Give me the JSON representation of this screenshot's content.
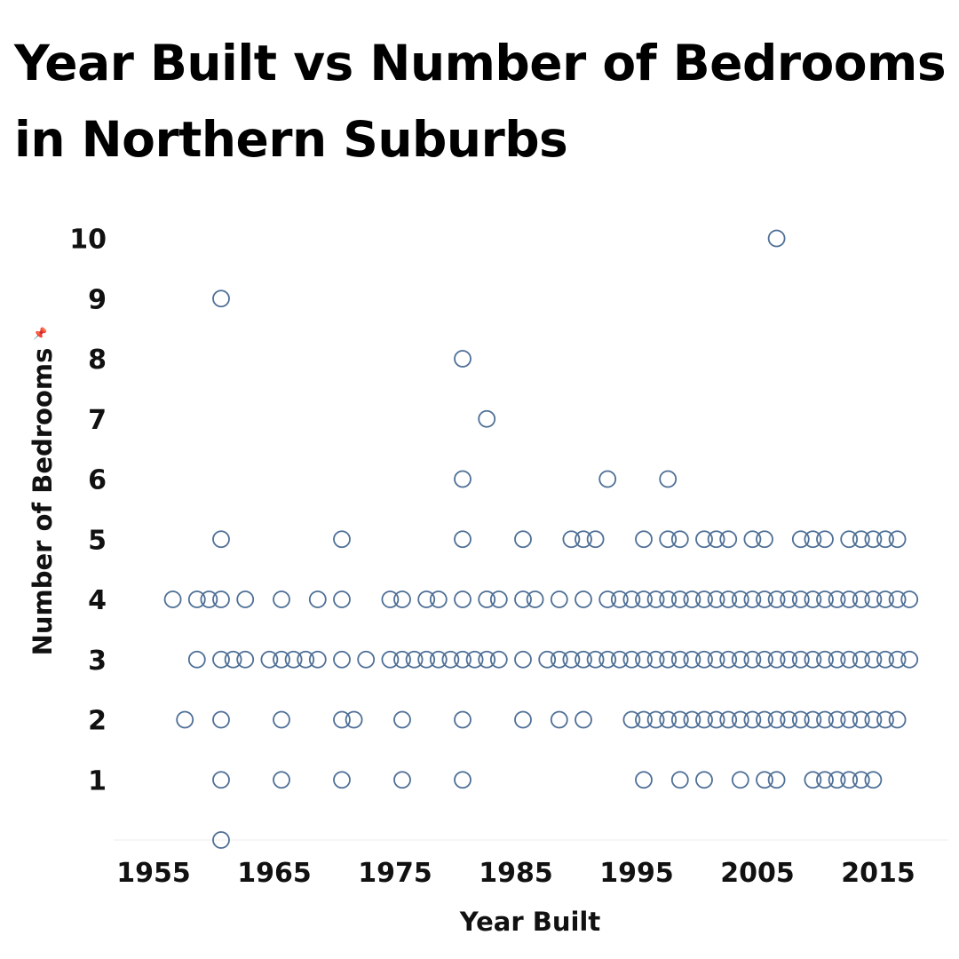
{
  "chart_data": {
    "type": "scatter",
    "title": "Year Built vs Number of Bedrooms in Northern Suburbs",
    "xlabel": "Year Built",
    "ylabel": "Number of Bedrooms",
    "xlim": [
      1952,
      2020
    ],
    "ylim": [
      0,
      10
    ],
    "x_ticks": [
      1955,
      1965,
      1975,
      1985,
      1995,
      2005,
      2015
    ],
    "y_ticks": [
      1,
      2,
      3,
      4,
      5,
      6,
      7,
      8,
      9,
      10
    ],
    "grid": false,
    "marker_color": "#4e6f96",
    "points_by_bedrooms": [
      {
        "bedrooms": 10,
        "years": [
          2006
        ]
      },
      {
        "bedrooms": 9,
        "years": [
          1960
        ]
      },
      {
        "bedrooms": 8,
        "years": [
          1980
        ]
      },
      {
        "bedrooms": 7,
        "years": [
          1982
        ]
      },
      {
        "bedrooms": 6,
        "years": [
          1980,
          1992,
          1997
        ]
      },
      {
        "bedrooms": 5,
        "years": [
          1960,
          1970,
          1980,
          1985,
          1989,
          1990,
          1991,
          1995,
          1997,
          1998,
          2000,
          2001,
          2002,
          2004,
          2005,
          2008,
          2009,
          2010,
          2012,
          2013,
          2014,
          2015,
          2016
        ]
      },
      {
        "bedrooms": 4,
        "years": [
          1956,
          1958,
          1959,
          1960,
          1962,
          1965,
          1968,
          1970,
          1974,
          1975,
          1977,
          1978,
          1980,
          1982,
          1983,
          1985,
          1986,
          1988,
          1990,
          1992,
          1993,
          1994,
          1995,
          1996,
          1997,
          1998,
          1999,
          2000,
          2001,
          2002,
          2003,
          2004,
          2005,
          2006,
          2007,
          2008,
          2009,
          2010,
          2011,
          2012,
          2013,
          2014,
          2015,
          2016,
          2017
        ]
      },
      {
        "bedrooms": 3,
        "years": [
          1958,
          1960,
          1961,
          1962,
          1964,
          1965,
          1966,
          1967,
          1968,
          1970,
          1972,
          1974,
          1975,
          1976,
          1977,
          1978,
          1979,
          1980,
          1981,
          1982,
          1983,
          1985,
          1987,
          1988,
          1989,
          1990,
          1991,
          1992,
          1993,
          1994,
          1995,
          1996,
          1997,
          1998,
          1999,
          2000,
          2001,
          2002,
          2003,
          2004,
          2005,
          2006,
          2007,
          2008,
          2009,
          2010,
          2011,
          2012,
          2013,
          2014,
          2015,
          2016,
          2017
        ]
      },
      {
        "bedrooms": 2,
        "years": [
          1957,
          1960,
          1965,
          1970,
          1971,
          1975,
          1980,
          1985,
          1988,
          1990,
          1994,
          1995,
          1996,
          1997,
          1998,
          1999,
          2000,
          2001,
          2002,
          2003,
          2004,
          2005,
          2006,
          2007,
          2008,
          2009,
          2010,
          2011,
          2012,
          2013,
          2014,
          2015,
          2016
        ]
      },
      {
        "bedrooms": 1,
        "years": [
          1960,
          1965,
          1970,
          1975,
          1980,
          1995,
          1998,
          2000,
          2003,
          2005,
          2006,
          2009,
          2010,
          2011,
          2012,
          2013,
          2014
        ]
      },
      {
        "bedrooms": 0,
        "years": [
          1960
        ]
      }
    ]
  }
}
